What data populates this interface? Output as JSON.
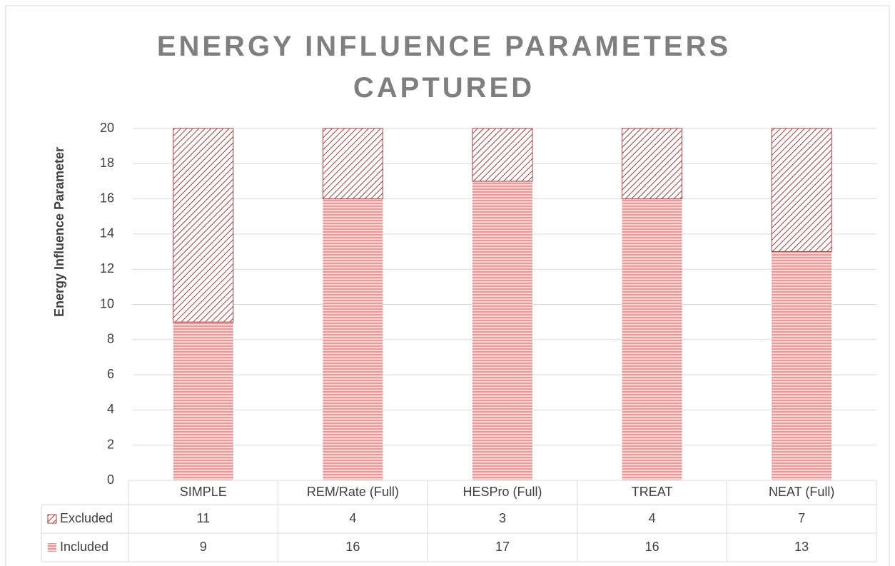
{
  "chart_data": {
    "type": "stacked_bar",
    "title": "ENERGY INFLUENCE PARAMETERS CAPTURED",
    "ylabel": "Energy Influence Parameter",
    "categories": [
      "SIMPLE",
      "REM/Rate (Full)",
      "HESPro (Full)",
      "TREAT",
      "NEAT (Full)"
    ],
    "series": [
      {
        "name": "Excluded",
        "color": "#b03a3a",
        "values": [
          11,
          4,
          3,
          4,
          7
        ]
      },
      {
        "name": "Included",
        "color": "#e38d8d",
        "values": [
          9,
          16,
          17,
          16,
          13
        ]
      }
    ],
    "ylim": [
      0,
      20
    ],
    "yticks": [
      0,
      2,
      4,
      6,
      8,
      10,
      12,
      14,
      16,
      18,
      20
    ],
    "grid": true
  }
}
